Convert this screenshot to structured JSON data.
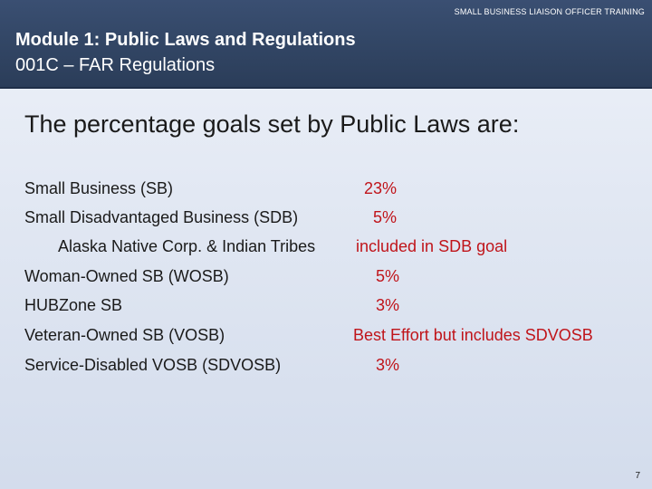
{
  "header": {
    "kicker": "SMALL BUSINESS LIAISON OFFICER TRAINING",
    "title": "Module 1: Public Laws and Regulations",
    "subtitle": "001C – FAR Regulations"
  },
  "lead": "The percentage goals set by Public Laws are:",
  "goals": [
    {
      "label": "Small Business (SB)",
      "value": "23%"
    },
    {
      "label": "Small Disadvantaged Business (SDB)",
      "value": "5%"
    },
    {
      "label": "Alaska Native Corp. & Indian Tribes",
      "value": "included in SDB goal"
    },
    {
      "label": "Woman-Owned SB (WOSB)",
      "value": "5%"
    },
    {
      "label": "HUBZone SB",
      "value": "3%"
    },
    {
      "label": "Veteran-Owned SB (VOSB)",
      "value": "Best Effort but includes SDVOSB"
    },
    {
      "label": "Service-Disabled VOSB (SDVOSB)",
      "value": "3%"
    }
  ],
  "page_number": "7",
  "colors": {
    "header": "#324665",
    "accent_value": "#c0141a"
  }
}
